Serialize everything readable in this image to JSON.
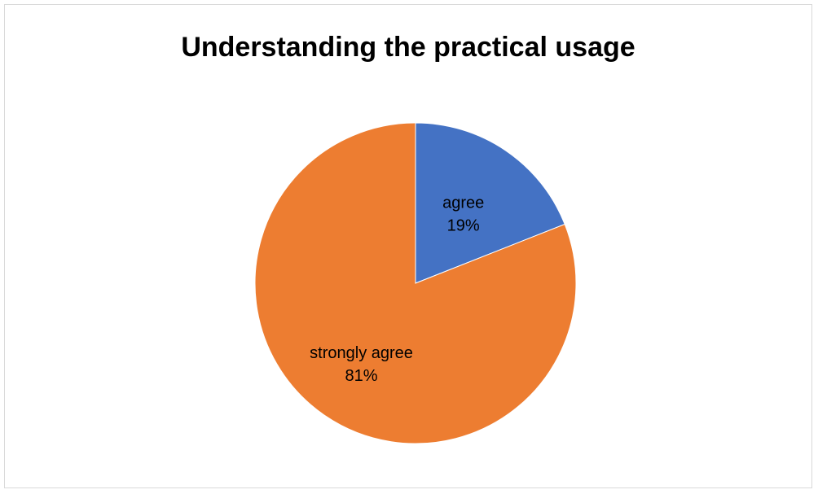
{
  "chart_data": {
    "type": "pie",
    "title": "Understanding the practical usage",
    "slices": [
      {
        "label": "agree",
        "value": 19,
        "percent_label": "19%",
        "color": "#4472C4"
      },
      {
        "label": "strongly agree",
        "value": 81,
        "percent_label": "81%",
        "color": "#ED7D31"
      }
    ],
    "start_angle_deg": 0,
    "direction": "clockwise"
  }
}
